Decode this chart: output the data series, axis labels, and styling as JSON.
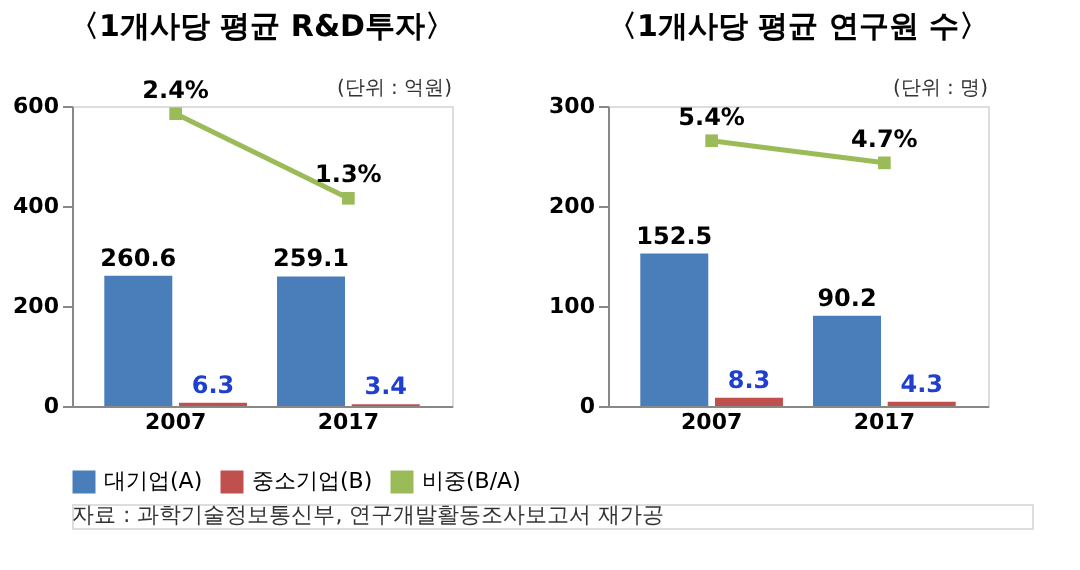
{
  "chart_data": [
    {
      "type": "bar",
      "title": "〈1개사당 평균 R&D투자〉",
      "annotations": [
        "(단위 : 억원)",
        "자료 : 과학기술정보통신부, 연구개발활동조사보고서 재가공"
      ],
      "categories": [
        "2007",
        "2017"
      ],
      "ylim": [
        0,
        600
      ],
      "yticks": [
        0,
        200,
        400,
        600
      ],
      "y2lim": [
        -1.4,
        2.5
      ],
      "grid": false,
      "legend": "bottom",
      "data_labels": true,
      "series": [
        {
          "name": "대기업(A)",
          "color": "#4a7ebb",
          "values": [
            260.6,
            259.1
          ]
        },
        {
          "name": "중소기업(B)",
          "color": "#c0504d",
          "values": [
            6.3,
            3.4
          ]
        },
        {
          "name": "비중(B/A)",
          "type": "line",
          "axis": "y2",
          "marker": "square",
          "color": "#9bbb59",
          "values": [
            2.4,
            1.3
          ],
          "value_labels": [
            "2.4%",
            "1.3%"
          ]
        }
      ]
    },
    {
      "type": "bar",
      "title": "〈1개사당 평균 연구원 수〉",
      "annotations": [
        "(단위 : 명)"
      ],
      "categories": [
        "2007",
        "2017"
      ],
      "ylim": [
        0,
        300
      ],
      "yticks": [
        0,
        100,
        200,
        300
      ],
      "y2lim": [
        -3,
        6.5
      ],
      "grid": false,
      "legend": "bottom",
      "data_labels": true,
      "series": [
        {
          "name": "대기업(A)",
          "color": "#4a7ebb",
          "values": [
            152.5,
            90.2
          ]
        },
        {
          "name": "중소기업(B)",
          "color": "#c0504d",
          "values": [
            8.3,
            4.3
          ]
        },
        {
          "name": "비중(B/A)",
          "type": "line",
          "axis": "y2",
          "marker": "square",
          "color": "#9bbb59",
          "values": [
            5.4,
            4.7
          ],
          "value_labels": [
            "5.4%",
            "4.7%"
          ]
        }
      ]
    }
  ]
}
